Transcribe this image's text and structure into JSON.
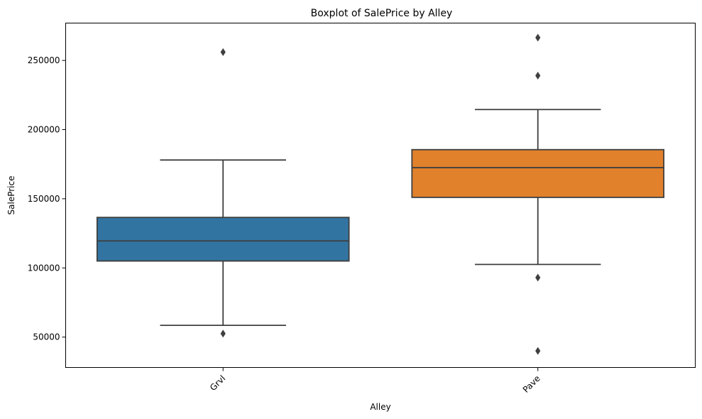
{
  "chart_data": {
    "type": "boxplot",
    "title": "Boxplot of SalePrice by Alley",
    "xlabel": "Alley",
    "ylabel": "SalePrice",
    "categories": [
      "Grvl",
      "Pave"
    ],
    "ylim": [
      28000,
      277000
    ],
    "yticks": [
      50000,
      100000,
      150000,
      200000,
      250000
    ],
    "ytick_labels": [
      "50000",
      "100000",
      "150000",
      "200000",
      "250000"
    ],
    "xtick_rotation": -45,
    "grid": false,
    "boxes": [
      {
        "category": "Grvl",
        "color": "#3274a1",
        "whisker_low": 58500,
        "q1": 105000,
        "median": 119500,
        "q3": 136500,
        "whisker_high": 178000,
        "outliers": [
          52500,
          256000
        ]
      },
      {
        "category": "Pave",
        "color": "#e1812c",
        "whisker_low": 102500,
        "q1": 151000,
        "median": 172500,
        "q3": 185500,
        "whisker_high": 214500,
        "outliers": [
          40000,
          93000,
          239000,
          266500
        ]
      }
    ]
  }
}
